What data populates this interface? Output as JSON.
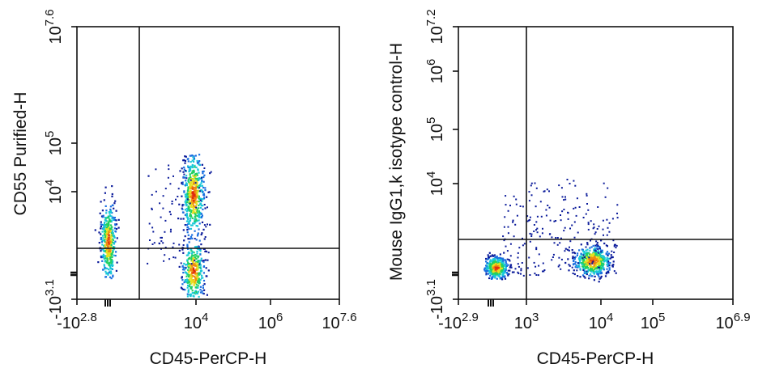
{
  "chart_data": [
    {
      "type": "scatter",
      "xlabel": "CD45-PerCP-H",
      "ylabel": "CD55 Purified-H",
      "xscale": "biexponential",
      "yscale": "biexponential",
      "xlim": [
        -631,
        39810717
      ],
      "ylim": [
        -1259,
        39810717
      ],
      "x_ticks": [
        {
          "base": "-10",
          "exp": "2.8",
          "value": -631
        },
        {
          "base": "10",
          "exp": "4",
          "value": 10000
        },
        {
          "base": "10",
          "exp": "6",
          "value": 1000000
        },
        {
          "base": "10",
          "exp": "7.6",
          "value": 39810717
        }
      ],
      "y_ticks": [
        {
          "base": "-10",
          "exp": "3.1",
          "value": -1259
        },
        {
          "base": "10",
          "exp": "4",
          "value": 10000
        },
        {
          "base": "10",
          "exp": "5",
          "value": 100000
        },
        {
          "base": "10",
          "exp": "7.6",
          "value": 39810717
        }
      ],
      "gate_lines": {
        "vertical_x": 1000,
        "horizontal_y": 1300
      },
      "populations": [
        {
          "name_hidden": true,
          "x_center": -500,
          "y_center": 1250,
          "spread_x": 0.07,
          "spread_y": 0.32,
          "density": "high"
        },
        {
          "name_hidden": true,
          "x_center": 8000,
          "y_center": 7000,
          "spread_x": 0.05,
          "spread_y": 0.55,
          "density": "high"
        },
        {
          "name_hidden": true,
          "x_center": 8000,
          "y_center": 0,
          "spread_x": 0.05,
          "spread_y": 0.3,
          "density": "high"
        }
      ]
    },
    {
      "type": "scatter",
      "xlabel": "CD45-PerCP-H",
      "ylabel": "Mouse IgG1,k isotype control-H",
      "xscale": "biexponential",
      "yscale": "biexponential",
      "xlim": [
        -794,
        7943282
      ],
      "ylim": [
        -1259,
        15848932
      ],
      "x_ticks": [
        {
          "base": "-10",
          "exp": "2.9",
          "value": -794
        },
        {
          "base": "10",
          "exp": "3",
          "value": 1000
        },
        {
          "base": "10",
          "exp": "4",
          "value": 10000
        },
        {
          "base": "10",
          "exp": "5",
          "value": 100000
        },
        {
          "base": "10",
          "exp": "6.9",
          "value": 7943282
        }
      ],
      "y_ticks": [
        {
          "base": "-10",
          "exp": "3.1",
          "value": -1259
        },
        {
          "base": "10",
          "exp": "4",
          "value": 10000
        },
        {
          "base": "10",
          "exp": "5",
          "value": 100000
        },
        {
          "base": "10",
          "exp": "6",
          "value": 1000000
        },
        {
          "base": "10",
          "exp": "7.2",
          "value": 15848932
        }
      ],
      "gate_lines": {
        "vertical_x": 800,
        "horizontal_y": 1500
      },
      "populations": [
        {
          "name_hidden": true,
          "x_center": -400,
          "y_center": 100,
          "spread_x": 0.06,
          "spread_y": 0.08,
          "density": "high"
        },
        {
          "name_hidden": true,
          "x_center": 8000,
          "y_center": 200,
          "spread_x": 0.06,
          "spread_y": 0.09,
          "density": "high"
        }
      ]
    }
  ],
  "colors": {
    "axis": "#111111",
    "density_low": "#0a1a9a",
    "density_mid": "#19c8d8",
    "density_high": "#e02a10"
  }
}
